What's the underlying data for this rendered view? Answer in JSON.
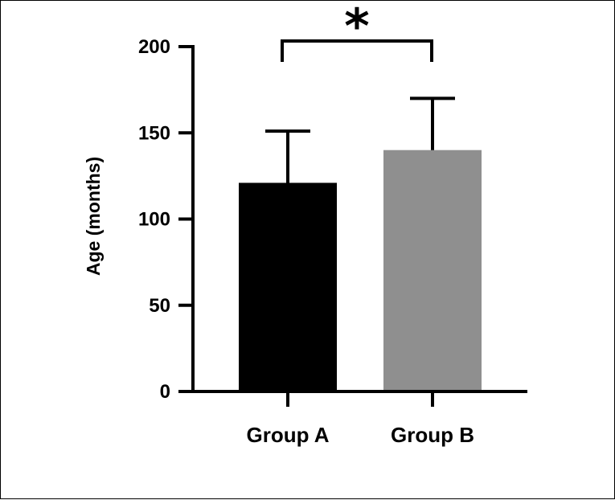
{
  "chart_data": {
    "type": "bar",
    "title": "",
    "xlabel": "",
    "ylabel": "Age (months)",
    "ylim": [
      0,
      200
    ],
    "yticks": [
      0,
      50,
      100,
      150,
      200
    ],
    "categories": [
      "Group A",
      "Group B"
    ],
    "values": [
      121,
      140
    ],
    "errors": [
      30,
      30
    ],
    "colors": [
      "#000000",
      "#8f8f8f"
    ],
    "significance": {
      "between": [
        "Group A",
        "Group B"
      ],
      "label": "*"
    },
    "grid": false,
    "legend": "none"
  }
}
